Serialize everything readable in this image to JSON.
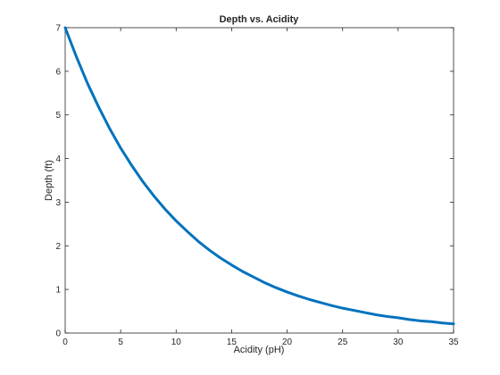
{
  "chart_data": {
    "type": "line",
    "title": "Depth vs. Acidity",
    "xlabel": "Acidity (pH)",
    "ylabel": "Depth (ft)",
    "xlim": [
      0,
      35
    ],
    "ylim": [
      0,
      7
    ],
    "xticks": [
      0,
      5,
      10,
      15,
      20,
      25,
      30,
      35
    ],
    "yticks": [
      0,
      1,
      2,
      3,
      4,
      5,
      6,
      7
    ],
    "grid": false,
    "box": true,
    "series": [
      {
        "color": "#0072bd",
        "x": [
          0,
          1,
          2,
          3,
          4,
          5,
          6,
          7,
          8,
          9,
          10,
          11,
          12,
          13,
          14,
          15,
          16,
          17,
          18,
          19,
          20,
          21,
          22,
          23,
          24,
          25,
          26,
          27,
          28,
          29,
          30,
          31,
          32,
          33,
          34,
          35
        ],
        "y": [
          7.0,
          6.34,
          5.73,
          5.19,
          4.69,
          4.24,
          3.84,
          3.47,
          3.14,
          2.84,
          2.57,
          2.33,
          2.1,
          1.9,
          1.72,
          1.56,
          1.41,
          1.28,
          1.15,
          1.04,
          0.94,
          0.85,
          0.77,
          0.7,
          0.63,
          0.57,
          0.52,
          0.47,
          0.42,
          0.38,
          0.35,
          0.31,
          0.28,
          0.26,
          0.23,
          0.21
        ]
      }
    ]
  }
}
